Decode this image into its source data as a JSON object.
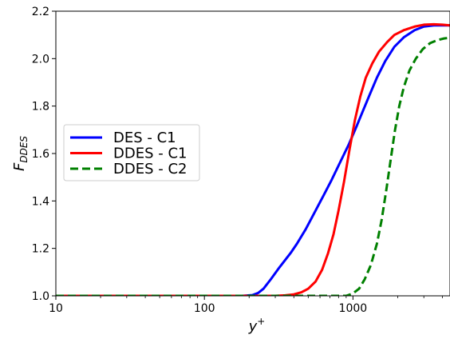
{
  "chart_data": {
    "type": "line",
    "title": "",
    "xlabel": {
      "base": "y",
      "sup": "+"
    },
    "ylabel": {
      "base": "F",
      "sub": "DDES"
    },
    "xscale": "log",
    "xlim": [
      10,
      4500
    ],
    "ylim": [
      1.0,
      2.2
    ],
    "x_ticks": [
      {
        "value": 10,
        "label": "10"
      },
      {
        "value": 100,
        "label": "100"
      },
      {
        "value": 1000,
        "label": "1000"
      }
    ],
    "y_ticks": [
      {
        "value": 1.0,
        "label": "1.0"
      },
      {
        "value": 1.2,
        "label": "1.2"
      },
      {
        "value": 1.4,
        "label": "1.4"
      },
      {
        "value": 1.6,
        "label": "1.6"
      },
      {
        "value": 1.8,
        "label": "1.8"
      },
      {
        "value": 2.0,
        "label": "2.0"
      },
      {
        "value": 2.2,
        "label": "2.2"
      }
    ],
    "grid": false,
    "legend_position": "center-left",
    "series": [
      {
        "name": "DES - C1",
        "color": "#0000ff",
        "dash": "solid",
        "points": [
          [
            10,
            1.0
          ],
          [
            100,
            1.0
          ],
          [
            180,
            1.0
          ],
          [
            210,
            1.003
          ],
          [
            230,
            1.012
          ],
          [
            250,
            1.03
          ],
          [
            280,
            1.07
          ],
          [
            320,
            1.12
          ],
          [
            380,
            1.18
          ],
          [
            420,
            1.22
          ],
          [
            480,
            1.28
          ],
          [
            550,
            1.35
          ],
          [
            630,
            1.42
          ],
          [
            720,
            1.49
          ],
          [
            830,
            1.57
          ],
          [
            940,
            1.64
          ],
          [
            1050,
            1.71
          ],
          [
            1150,
            1.77
          ],
          [
            1300,
            1.85
          ],
          [
            1450,
            1.92
          ],
          [
            1650,
            1.99
          ],
          [
            1900,
            2.05
          ],
          [
            2200,
            2.09
          ],
          [
            2600,
            2.12
          ],
          [
            3000,
            2.135
          ],
          [
            3500,
            2.14
          ],
          [
            4000,
            2.14
          ],
          [
            4500,
            2.14
          ]
        ]
      },
      {
        "name": "DDES - C1",
        "color": "#ff0000",
        "dash": "solid",
        "points": [
          [
            10,
            1.0
          ],
          [
            100,
            1.0
          ],
          [
            300,
            1.0
          ],
          [
            350,
            1.002
          ],
          [
            400,
            1.006
          ],
          [
            450,
            1.015
          ],
          [
            500,
            1.03
          ],
          [
            560,
            1.06
          ],
          [
            620,
            1.11
          ],
          [
            680,
            1.18
          ],
          [
            740,
            1.26
          ],
          [
            800,
            1.36
          ],
          [
            870,
            1.48
          ],
          [
            950,
            1.62
          ],
          [
            1030,
            1.74
          ],
          [
            1120,
            1.84
          ],
          [
            1220,
            1.92
          ],
          [
            1350,
            1.98
          ],
          [
            1500,
            2.03
          ],
          [
            1700,
            2.07
          ],
          [
            1900,
            2.1
          ],
          [
            2200,
            2.12
          ],
          [
            2600,
            2.135
          ],
          [
            3000,
            2.143
          ],
          [
            3500,
            2.145
          ],
          [
            4000,
            2.143
          ],
          [
            4500,
            2.14
          ]
        ]
      },
      {
        "name": "DDES - C2",
        "color": "#008000",
        "dash": "dashed",
        "points": [
          [
            10,
            1.0
          ],
          [
            100,
            1.0
          ],
          [
            500,
            1.0
          ],
          [
            900,
            1.0
          ],
          [
            1000,
            1.01
          ],
          [
            1100,
            1.03
          ],
          [
            1200,
            1.07
          ],
          [
            1320,
            1.13
          ],
          [
            1450,
            1.22
          ],
          [
            1560,
            1.32
          ],
          [
            1680,
            1.45
          ],
          [
            1800,
            1.58
          ],
          [
            1920,
            1.7
          ],
          [
            2050,
            1.8
          ],
          [
            2200,
            1.88
          ],
          [
            2400,
            1.95
          ],
          [
            2650,
            2.0
          ],
          [
            2950,
            2.04
          ],
          [
            3300,
            2.065
          ],
          [
            3700,
            2.078
          ],
          [
            4100,
            2.085
          ],
          [
            4500,
            2.088
          ]
        ]
      }
    ]
  }
}
